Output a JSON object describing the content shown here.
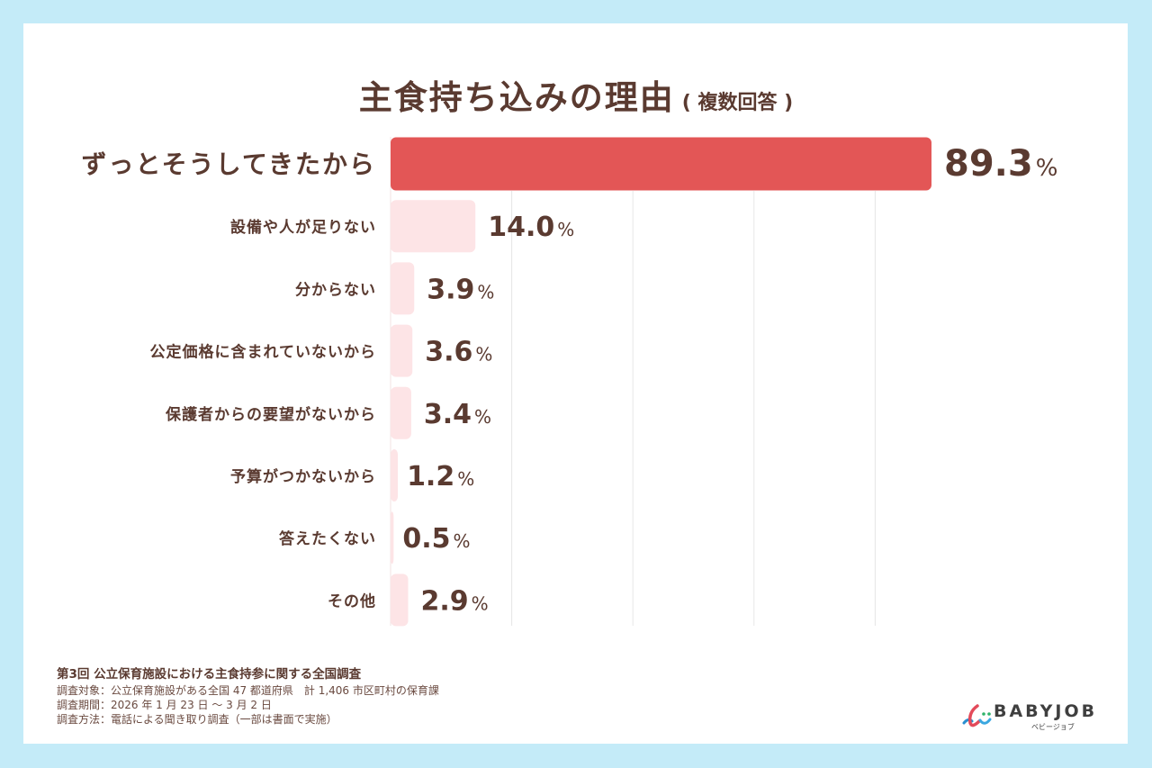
{
  "title": {
    "main": "主食持ち込みの理由",
    "sub": "( 複数回答 )"
  },
  "colors": {
    "highlight": "#e35656",
    "bar": "#fde4e6",
    "text": "#5a3a30",
    "grid": "#e6e6e6",
    "background": "#c4ebf8"
  },
  "chart_data": {
    "type": "bar",
    "orientation": "horizontal",
    "title": "主食持ち込みの理由 ( 複数回答 )",
    "xlabel": "",
    "ylabel": "",
    "xlim": [
      0,
      100
    ],
    "grid": true,
    "unit": "%",
    "categories": [
      "ずっとそうしてきたから",
      "設備や人が足りない",
      "分からない",
      "公定価格に含まれていないから",
      "保護者からの要望がないから",
      "予算がつかないから",
      "答えたくない",
      "その他"
    ],
    "values": [
      89.3,
      14.0,
      3.9,
      3.6,
      3.4,
      1.2,
      0.5,
      2.9
    ],
    "value_labels": [
      "89.3",
      "14.0",
      "3.9",
      "3.6",
      "3.4",
      "1.2",
      "0.5",
      "2.9"
    ],
    "highlight_index": 0
  },
  "footer": {
    "title": "第3回 公立保育施設における主食持参に関する全国調査",
    "lines": [
      "調査対象：公立保育施設がある全国 47 都道府県　計 1,406 市区町村の保育課",
      "調査期間：2026 年 1 月 23 日 ～ 3 月 2 日",
      "調査方法：電話による聞き取り調査（一部は書面で実施）"
    ]
  },
  "logo": {
    "wordmark": "BABYJOB",
    "kana": "ベビージョブ"
  }
}
